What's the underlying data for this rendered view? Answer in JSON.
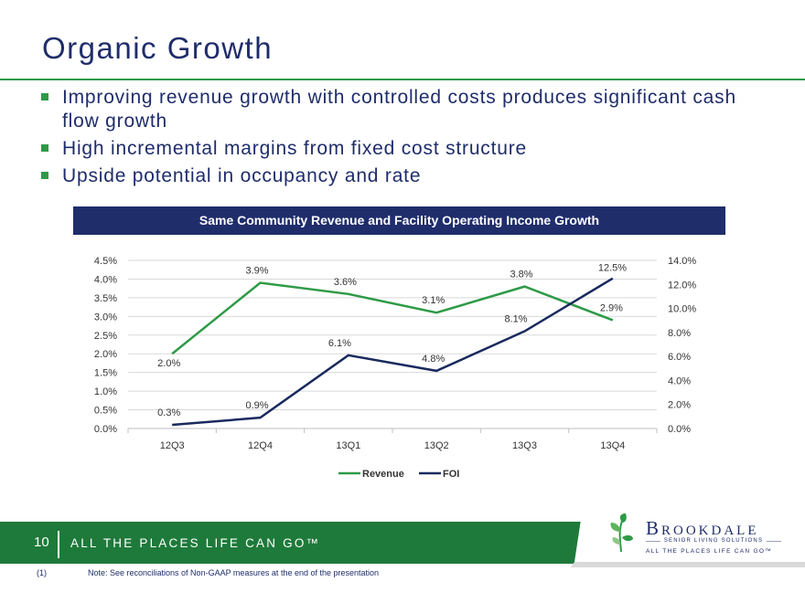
{
  "slide": {
    "title": "Organic Growth",
    "bullets": [
      "Improving revenue growth with controlled costs produces significant cash flow growth",
      "High incremental margins from fixed cost structure",
      "Upside potential in occupancy and rate"
    ],
    "chart_banner": "Same Community Revenue and Facility Operating Income Growth"
  },
  "footer": {
    "page_number": "10",
    "tagline": "ALL THE PLACES LIFE CAN GO™",
    "note_number": "(1)",
    "note_text": "Note: See reconciliations of Non-GAAP measures at the end of the presentation"
  },
  "logo": {
    "name": "Brookdale",
    "subtitle": "SENIOR LIVING SOLUTIONS",
    "tagline": "ALL THE PLACES LIFE CAN GO™"
  },
  "colors": {
    "navy": "#1f2d6b",
    "green": "#2e9a47",
    "revenue_line": "#2e9a47",
    "foi_line": "#1a2a5e"
  },
  "chart_data": {
    "type": "line",
    "title": "Same Community Revenue and Facility Operating Income Growth",
    "categories": [
      "12Q3",
      "12Q4",
      "13Q1",
      "13Q2",
      "13Q3",
      "13Q4"
    ],
    "series": [
      {
        "name": "Revenue",
        "axis": "left",
        "values": [
          2.0,
          3.9,
          3.6,
          3.1,
          3.8,
          2.9
        ],
        "labels": [
          "2.0%",
          "3.9%",
          "3.6%",
          "3.1%",
          "3.8%",
          "2.9%"
        ],
        "color": "#2e9a47"
      },
      {
        "name": "FOI",
        "axis": "right",
        "values": [
          0.3,
          0.9,
          6.1,
          4.8,
          8.1,
          12.5
        ],
        "labels": [
          "0.3%",
          "0.9%",
          "6.1%",
          "4.8%",
          "8.1%",
          "12.5%"
        ],
        "color": "#1a2a5e"
      }
    ],
    "left_axis": {
      "ylim": [
        0,
        4.5
      ],
      "ticks": [
        0,
        0.5,
        1.0,
        1.5,
        2.0,
        2.5,
        3.0,
        3.5,
        4.0,
        4.5
      ],
      "tick_labels": [
        "0.0%",
        "0.5%",
        "1.0%",
        "1.5%",
        "2.0%",
        "2.5%",
        "3.0%",
        "3.5%",
        "4.0%",
        "4.5%"
      ]
    },
    "right_axis": {
      "ylim": [
        0,
        14
      ],
      "ticks": [
        0,
        2,
        4,
        6,
        8,
        10,
        12,
        14
      ],
      "tick_labels": [
        "0.0%",
        "2.0%",
        "4.0%",
        "6.0%",
        "8.0%",
        "10.0%",
        "12.0%",
        "14.0%"
      ]
    },
    "grid": true,
    "legend": "bottom"
  }
}
